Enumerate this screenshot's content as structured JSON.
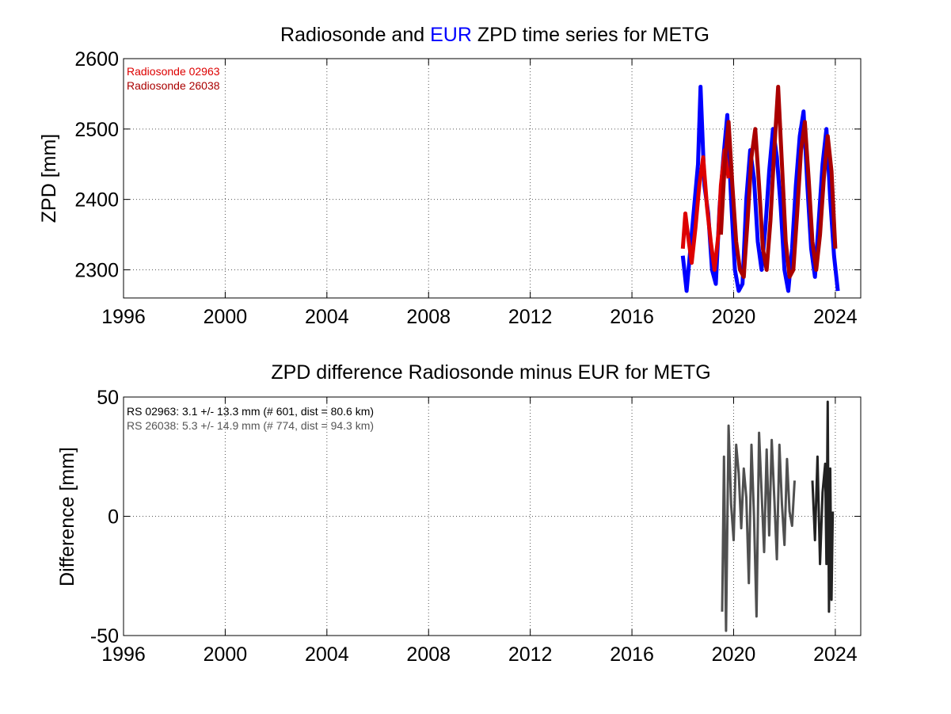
{
  "chart_data": [
    {
      "type": "line",
      "title": {
        "prefix": "Radiosonde and ",
        "highlight": "EUR",
        "suffix": " ZPD time series for METG"
      },
      "xlabel": "",
      "ylabel": "ZPD [mm]",
      "xlim": [
        1996,
        2025
      ],
      "ylim": [
        2260,
        2600
      ],
      "xticks": [
        1996,
        2000,
        2004,
        2008,
        2012,
        2016,
        2020,
        2024
      ],
      "yticks": [
        2300,
        2400,
        2500,
        2600
      ],
      "grid": true,
      "legend": [
        "Radiosonde 02963",
        "Radiosonde 26038"
      ],
      "legend_position": "top-left",
      "series": [
        {
          "name": "EUR",
          "color": "#0000ff",
          "x": [
            2018.0,
            2018.15,
            2018.3,
            2018.45,
            2018.6,
            2018.7,
            2018.85,
            2019.0,
            2019.15,
            2019.3,
            2019.45,
            2019.6,
            2019.75,
            2019.9,
            2020.05,
            2020.2,
            2020.35,
            2020.5,
            2020.65,
            2020.8,
            2020.95,
            2021.1,
            2021.25,
            2021.4,
            2021.55,
            2021.7,
            2021.85,
            2022.0,
            2022.15,
            2022.3,
            2022.45,
            2022.6,
            2022.75,
            2022.9,
            2023.05,
            2023.2,
            2023.35,
            2023.5,
            2023.65,
            2023.8,
            2023.95,
            2024.1
          ],
          "y": [
            2320,
            2270,
            2330,
            2390,
            2450,
            2560,
            2420,
            2380,
            2300,
            2280,
            2390,
            2460,
            2520,
            2400,
            2300,
            2270,
            2280,
            2400,
            2470,
            2430,
            2340,
            2300,
            2360,
            2440,
            2500,
            2460,
            2390,
            2300,
            2270,
            2330,
            2420,
            2490,
            2525,
            2420,
            2330,
            2290,
            2370,
            2450,
            2500,
            2400,
            2320,
            2270
          ]
        },
        {
          "name": "Radiosonde 02963",
          "color": "#dd0000",
          "x": [
            2018.0,
            2018.1,
            2018.2,
            2018.35,
            2018.5,
            2018.65,
            2018.8,
            2018.95,
            2019.1,
            2019.25,
            2019.4,
            2019.5,
            2019.65,
            2019.8
          ],
          "y": [
            2330,
            2380,
            2350,
            2310,
            2360,
            2420,
            2460,
            2390,
            2340,
            2300,
            2350,
            2420,
            2470,
            2430
          ]
        },
        {
          "name": "Radiosonde 26038",
          "color": "#aa0000",
          "x": [
            2019.5,
            2019.65,
            2019.8,
            2019.95,
            2020.1,
            2020.25,
            2020.4,
            2020.55,
            2020.7,
            2020.85,
            2021.0,
            2021.15,
            2021.3,
            2021.45,
            2021.6,
            2021.75,
            2021.9,
            2022.05,
            2022.2,
            2022.35,
            2022.5,
            2022.65,
            2022.8,
            2022.95,
            2023.1,
            2023.25,
            2023.4,
            2023.55,
            2023.7,
            2023.85,
            2024.0
          ],
          "y": [
            2350,
            2450,
            2510,
            2420,
            2340,
            2300,
            2290,
            2370,
            2460,
            2500,
            2420,
            2330,
            2300,
            2370,
            2470,
            2560,
            2450,
            2340,
            2290,
            2300,
            2380,
            2470,
            2510,
            2430,
            2340,
            2300,
            2350,
            2430,
            2490,
            2440,
            2330
          ]
        }
      ]
    },
    {
      "type": "line",
      "title": "ZPD difference Radiosonde minus EUR for METG",
      "xlabel": "",
      "ylabel": "Difference [mm]",
      "xlim": [
        1996,
        2025
      ],
      "ylim": [
        -50,
        50
      ],
      "xticks": [
        1996,
        2000,
        2004,
        2008,
        2012,
        2016,
        2020,
        2024
      ],
      "yticks": [
        -50,
        0,
        50
      ],
      "grid": true,
      "legend_position": "top-left",
      "annotations": [
        {
          "text": "RS 02963: 3.1 +/- 13.3 mm (# 601, dist =  80.6 km)",
          "color": "#000000"
        },
        {
          "text": "RS 26038: 5.3 +/- 14.9 mm (# 774, dist =  94.3 km)",
          "color": "#555555"
        }
      ],
      "series": [
        {
          "name": "RS 26038",
          "color": "#505050",
          "x": [
            2019.55,
            2019.62,
            2019.7,
            2019.8,
            2019.9,
            2020.0,
            2020.1,
            2020.2,
            2020.3,
            2020.4,
            2020.5,
            2020.6,
            2020.7,
            2020.8,
            2020.9,
            2021.0,
            2021.1,
            2021.2,
            2021.3,
            2021.4,
            2021.5,
            2021.6,
            2021.7,
            2021.8,
            2021.9,
            2022.0,
            2022.1,
            2022.2,
            2022.3,
            2022.4
          ],
          "y": [
            -40,
            25,
            -48,
            38,
            5,
            -10,
            30,
            18,
            -5,
            20,
            8,
            -28,
            30,
            0,
            -42,
            35,
            10,
            -15,
            28,
            -8,
            32,
            8,
            -18,
            30,
            5,
            -12,
            24,
            2,
            -4,
            15
          ]
        },
        {
          "name": "RS 02963",
          "color": "#222222",
          "x": [
            2023.1,
            2023.2,
            2023.3,
            2023.4,
            2023.5,
            2023.6,
            2023.65,
            2023.7,
            2023.75,
            2023.8,
            2023.85,
            2023.9
          ],
          "y": [
            15,
            -10,
            25,
            -20,
            10,
            22,
            -20,
            48,
            -40,
            20,
            -35,
            2
          ]
        }
      ]
    }
  ]
}
